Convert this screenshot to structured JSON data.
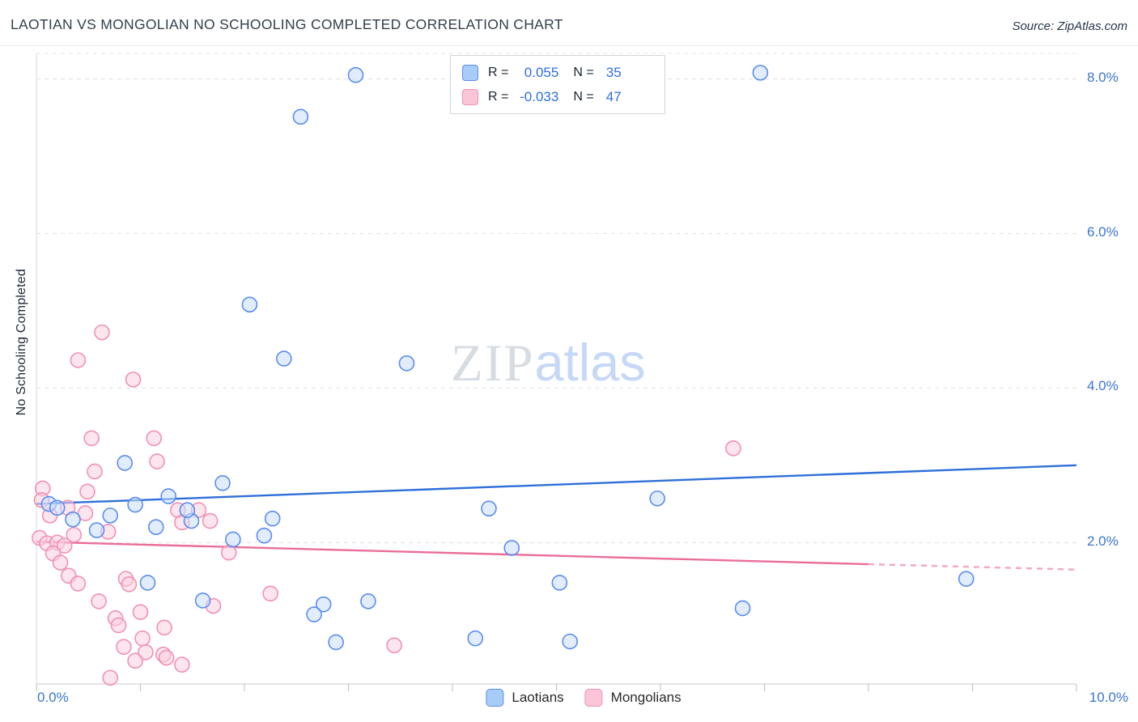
{
  "header": {
    "title": "LAOTIAN VS MONGOLIAN NO SCHOOLING COMPLETED CORRELATION CHART",
    "source": "Source: ZipAtlas.com"
  },
  "watermark": {
    "zip": "ZIP",
    "atlas": "atlas"
  },
  "axes": {
    "y_axis_label": "No Schooling Completed",
    "y_tick_labels": [
      "8.0%",
      "6.0%",
      "4.0%",
      "2.0%"
    ],
    "x_left_label": "0.0%",
    "x_right_label": "10.0%"
  },
  "stats_legend": {
    "rows": [
      {
        "series": "Laotians",
        "r_label": "R =",
        "r_value": "0.055",
        "n_label": "N =",
        "n_value": "35"
      },
      {
        "series": "Mongolians",
        "r_label": "R =",
        "r_value": "-0.033",
        "n_label": "N =",
        "n_value": "47"
      }
    ]
  },
  "bottom_legend": {
    "items": [
      {
        "label": "Laotians"
      },
      {
        "label": "Mongolians"
      }
    ]
  },
  "colors": {
    "accent_blue": "#3b76d1",
    "trend_blue": "#2e6fd8",
    "trend_pink": "#ea6d96",
    "point_blue_stroke": "#5b8def",
    "point_blue_fill": "#c9defb",
    "point_pink_stroke": "#f191b2",
    "point_pink_fill": "#fbd0e0",
    "grid": "#e0e0e0"
  },
  "chart_data": {
    "type": "scatter",
    "title": "Laotian vs Mongolian No Schooling Completed",
    "xlabel": "",
    "ylabel": "No Schooling Completed",
    "x_unit": "%",
    "y_unit": "%",
    "xlim": [
      0,
      10
    ],
    "ylim": [
      0.17,
      8.33
    ],
    "grid_y": [
      2,
      4,
      6,
      8
    ],
    "x_ticks": [
      0,
      1,
      2,
      3,
      4,
      5,
      6,
      7,
      8,
      9,
      10
    ],
    "grid": "horizontal-dashed",
    "legend_position": "bottom-center",
    "series": [
      {
        "name": "Laotians",
        "r": 0.055,
        "n": 35,
        "stroke": "#5b8def",
        "fill": "#c9defb",
        "points": [
          [
            3.07,
            8.05
          ],
          [
            2.54,
            7.51
          ],
          [
            6.96,
            8.08
          ],
          [
            2.05,
            5.08
          ],
          [
            2.38,
            4.38
          ],
          [
            3.56,
            4.32
          ],
          [
            0.85,
            3.03
          ],
          [
            1.79,
            2.77
          ],
          [
            5.97,
            2.57
          ],
          [
            4.35,
            2.44
          ],
          [
            0.12,
            2.5
          ],
          [
            0.71,
            2.35
          ],
          [
            0.95,
            2.49
          ],
          [
            1.27,
            2.6
          ],
          [
            1.49,
            2.28
          ],
          [
            2.27,
            2.31
          ],
          [
            2.19,
            2.09
          ],
          [
            1.89,
            2.04
          ],
          [
            0.58,
            2.16
          ],
          [
            4.57,
            1.93
          ],
          [
            5.03,
            1.48
          ],
          [
            1.07,
            1.48
          ],
          [
            1.6,
            1.25
          ],
          [
            2.76,
            1.2
          ],
          [
            3.19,
            1.24
          ],
          [
            2.67,
            1.07
          ],
          [
            6.79,
            1.15
          ],
          [
            8.94,
            1.53
          ],
          [
            4.22,
            0.76
          ],
          [
            5.13,
            0.72
          ],
          [
            2.88,
            0.71
          ],
          [
            0.2,
            2.45
          ],
          [
            0.35,
            2.3
          ],
          [
            1.15,
            2.2
          ],
          [
            1.45,
            2.42
          ]
        ]
      },
      {
        "name": "Mongolians",
        "r": -0.033,
        "n": 47,
        "stroke": "#f191b2",
        "fill": "#fbd0e0",
        "points": [
          [
            0.63,
            4.72
          ],
          [
            0.4,
            4.36
          ],
          [
            0.93,
            4.11
          ],
          [
            0.53,
            3.35
          ],
          [
            1.13,
            3.35
          ],
          [
            1.16,
            3.05
          ],
          [
            0.56,
            2.92
          ],
          [
            6.7,
            3.22
          ],
          [
            0.49,
            2.66
          ],
          [
            0.06,
            2.7
          ],
          [
            0.3,
            2.45
          ],
          [
            0.47,
            2.38
          ],
          [
            1.36,
            2.42
          ],
          [
            1.4,
            2.26
          ],
          [
            1.56,
            2.42
          ],
          [
            1.67,
            2.28
          ],
          [
            0.69,
            2.14
          ],
          [
            0.03,
            2.06
          ],
          [
            0.1,
            1.99
          ],
          [
            0.2,
            2.0
          ],
          [
            0.27,
            1.96
          ],
          [
            0.16,
            1.86
          ],
          [
            0.23,
            1.74
          ],
          [
            1.85,
            1.87
          ],
          [
            2.25,
            1.34
          ],
          [
            0.31,
            1.57
          ],
          [
            0.4,
            1.47
          ],
          [
            0.6,
            1.24
          ],
          [
            0.86,
            1.53
          ],
          [
            0.89,
            1.46
          ],
          [
            0.76,
            1.02
          ],
          [
            0.79,
            0.93
          ],
          [
            1.0,
            1.1
          ],
          [
            1.23,
            0.9
          ],
          [
            1.7,
            1.18
          ],
          [
            0.84,
            0.65
          ],
          [
            1.02,
            0.76
          ],
          [
            1.05,
            0.58
          ],
          [
            1.22,
            0.55
          ],
          [
            1.25,
            0.51
          ],
          [
            1.4,
            0.42
          ],
          [
            3.44,
            0.67
          ],
          [
            0.71,
            0.25
          ],
          [
            0.05,
            2.55
          ],
          [
            0.13,
            2.35
          ],
          [
            0.36,
            2.1
          ],
          [
            0.95,
            0.47
          ]
        ]
      }
    ],
    "trend_lines": [
      {
        "series": "Laotians",
        "x1": 0,
        "y1": 2.5,
        "x2": 10,
        "y2": 3.0,
        "color": "#2e6fd8",
        "style": "solid"
      },
      {
        "series": "Mongolians",
        "x1": 0,
        "y1": 2.01,
        "x2": 8.0,
        "y2": 1.72,
        "color": "#ea6d96",
        "style": "solid"
      },
      {
        "series": "Mongolians",
        "x1": 8.0,
        "y1": 1.72,
        "x2": 10,
        "y2": 1.65,
        "color": "#f2a7bf",
        "style": "dashed"
      }
    ]
  }
}
